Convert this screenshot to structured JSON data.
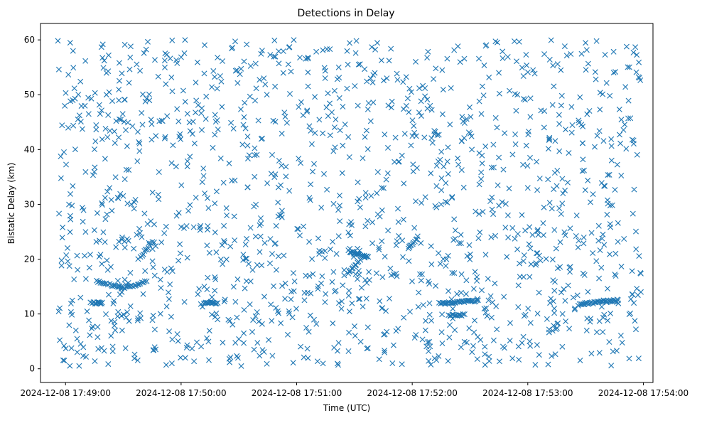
{
  "chart_data": {
    "type": "scatter",
    "title": "Detections in Delay",
    "xlabel": "Time (UTC)",
    "ylabel": "Bistatic Delay (km)",
    "xlim": [
      "2024-12-08 17:48:47",
      "2024-12-08 17:54:05"
    ],
    "ylim": [
      -2.5,
      63
    ],
    "xticks": [
      "2024-12-08 17:49:00",
      "2024-12-08 17:50:00",
      "2024-12-08 17:51:00",
      "2024-12-08 17:52:00",
      "2024-12-08 17:53:00",
      "2024-12-08 17:54:00"
    ],
    "yticks": [
      0,
      10,
      20,
      30,
      40,
      50,
      60
    ],
    "grid": false,
    "legend": "none",
    "marker": "x",
    "color": "#1f77b4",
    "time_range": [
      "2024-12-08 17:48:56",
      "2024-12-08 17:53:59"
    ],
    "delay_range": [
      0.5,
      60
    ],
    "noise_point_count": 1450,
    "tracks": [
      {
        "t_start": "2024-12-08 17:49:14",
        "t_end": "2024-12-08 17:49:19",
        "delay_start": 12.0,
        "delay_end": 12.0,
        "count": 14
      },
      {
        "t_start": "2024-12-08 17:49:16",
        "t_end": "2024-12-08 17:49:29",
        "delay_start": 16.0,
        "delay_end": 14.8,
        "count": 18
      },
      {
        "t_start": "2024-12-08 17:49:29",
        "t_end": "2024-12-08 17:49:42",
        "delay_start": 14.6,
        "delay_end": 15.9,
        "count": 18
      },
      {
        "t_start": "2024-12-08 17:49:39",
        "t_end": "2024-12-08 17:49:45",
        "delay_start": 20.5,
        "delay_end": 23.0,
        "count": 10
      },
      {
        "t_start": "2024-12-08 17:50:12",
        "t_end": "2024-12-08 17:50:19",
        "delay_start": 12.0,
        "delay_end": 12.0,
        "count": 14
      },
      {
        "t_start": "2024-12-08 17:51:27",
        "t_end": "2024-12-08 17:51:37",
        "delay_start": 21.5,
        "delay_end": 20.3,
        "count": 22
      },
      {
        "t_start": "2024-12-08 17:51:27",
        "t_end": "2024-12-08 17:51:32",
        "delay_start": 17.5,
        "delay_end": 19.5,
        "count": 10
      },
      {
        "t_start": "2024-12-08 17:51:58",
        "t_end": "2024-12-08 17:52:03",
        "delay_start": 22.0,
        "delay_end": 24.0,
        "count": 10
      },
      {
        "t_start": "2024-12-08 17:52:14",
        "t_end": "2024-12-08 17:52:34",
        "delay_start": 12.0,
        "delay_end": 12.4,
        "count": 36
      },
      {
        "t_start": "2024-12-08 17:52:19",
        "t_end": "2024-12-08 17:52:27",
        "delay_start": 9.8,
        "delay_end": 9.8,
        "count": 14
      },
      {
        "t_start": "2024-12-08 17:53:27",
        "t_end": "2024-12-08 17:53:47",
        "delay_start": 11.8,
        "delay_end": 12.5,
        "count": 36
      }
    ]
  }
}
